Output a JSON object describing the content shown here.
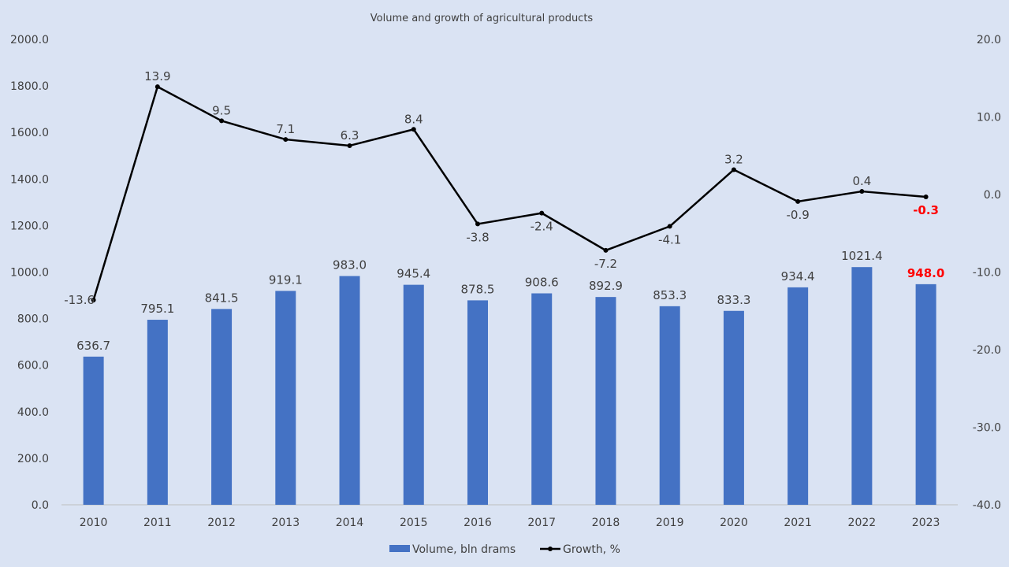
{
  "chart_data": {
    "type": "bar+line",
    "title": "Volume and growth of agricultural products",
    "categories": [
      "2010",
      "2011",
      "2012",
      "2013",
      "2014",
      "2015",
      "2016",
      "2017",
      "2018",
      "2019",
      "2020",
      "2021",
      "2022",
      "2023"
    ],
    "series": [
      {
        "name": "Volume, bln drams",
        "type": "bar",
        "axis": "left",
        "color": "#4472c4",
        "values": [
          636.7,
          795.1,
          841.5,
          919.1,
          983.0,
          945.4,
          878.5,
          908.6,
          892.9,
          853.3,
          833.3,
          934.4,
          1021.4,
          948.0
        ]
      },
      {
        "name": "Growth, %",
        "type": "line",
        "axis": "right",
        "color": "#000000",
        "values": [
          -13.6,
          13.9,
          9.5,
          7.1,
          6.3,
          8.4,
          -3.8,
          -2.4,
          -7.2,
          -4.1,
          3.2,
          -0.9,
          0.4,
          -0.3
        ]
      }
    ],
    "highlight": {
      "index": 13,
      "color": "#ff0000"
    },
    "left_axis": {
      "range": [
        0,
        2000
      ],
      "step": 200,
      "ticks": [
        "0.0",
        "200.0",
        "400.0",
        "600.0",
        "800.0",
        "1000.0",
        "1200.0",
        "1400.0",
        "1600.0",
        "1800.0",
        "2000.0"
      ]
    },
    "right_axis": {
      "range": [
        -40,
        20
      ],
      "step": 10,
      "ticks": [
        "-40.0",
        "-30.0",
        "-20.0",
        "-10.0",
        "0.0",
        "10.0",
        "20.0"
      ]
    },
    "legend": {
      "position": "bottom",
      "items": [
        "Volume, bln drams",
        "Growth, %"
      ]
    },
    "grid": false
  }
}
